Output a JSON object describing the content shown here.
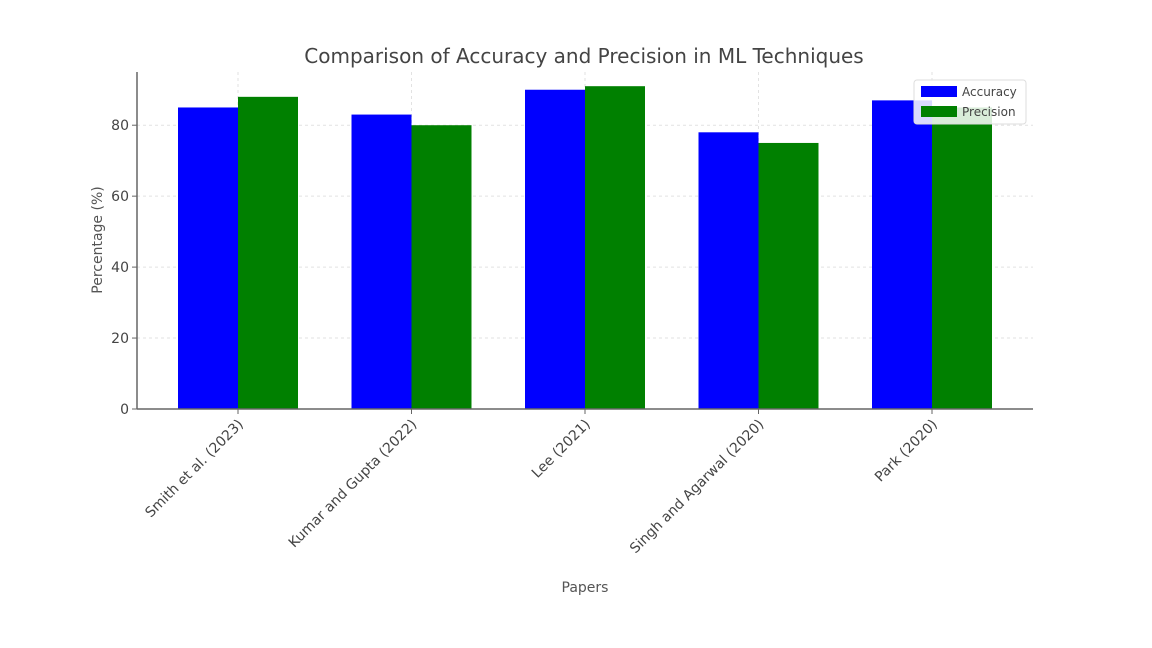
{
  "chart_data": {
    "type": "bar",
    "title": "Comparison of Accuracy and Precision in ML Techniques",
    "xlabel": "Papers",
    "ylabel": "Percentage (%)",
    "categories": [
      "Smith et al. (2023)",
      "Kumar and Gupta (2022)",
      "Lee (2021)",
      "Singh and Agarwal (2020)",
      "Park (2020)"
    ],
    "series": [
      {
        "name": "Accuracy",
        "values": [
          85,
          83,
          90,
          78,
          87
        ],
        "color": "#0000ff"
      },
      {
        "name": "Precision",
        "values": [
          88,
          80,
          91,
          75,
          85
        ],
        "color": "#008000"
      }
    ],
    "ylim": [
      0,
      95
    ],
    "yticks": [
      0,
      20,
      40,
      60,
      80
    ],
    "grid": true,
    "legend_position": "top-right"
  }
}
